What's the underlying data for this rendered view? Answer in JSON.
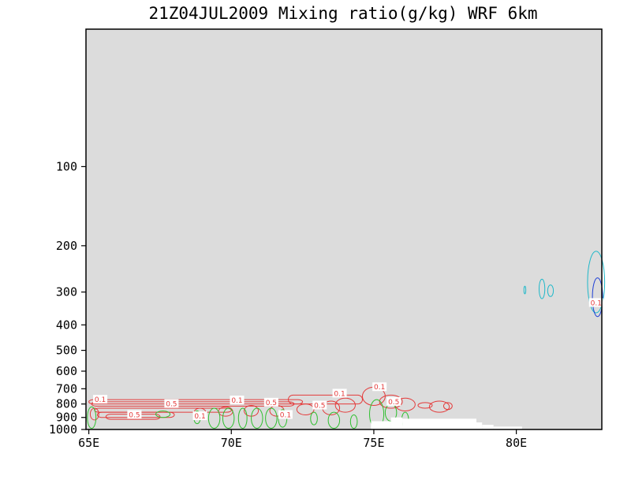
{
  "chart_data": {
    "type": "contour",
    "title": "21Z04JUL2009 Mixing ratio(g/kg)  WRF 6km",
    "xlabel": "",
    "ylabel": "",
    "x_ticks": [
      {
        "value": 65,
        "label": "65E"
      },
      {
        "value": 70,
        "label": "70E"
      },
      {
        "value": 75,
        "label": "75E"
      },
      {
        "value": 80,
        "label": "80E"
      }
    ],
    "y_ticks": [
      {
        "value": 100,
        "label": "100"
      },
      {
        "value": 200,
        "label": "200"
      },
      {
        "value": 300,
        "label": "300"
      },
      {
        "value": 400,
        "label": "400"
      },
      {
        "value": 500,
        "label": "500"
      },
      {
        "value": 600,
        "label": "600"
      },
      {
        "value": 700,
        "label": "700"
      },
      {
        "value": 800,
        "label": "800"
      },
      {
        "value": 900,
        "label": "900"
      },
      {
        "value": 1000,
        "label": "1000"
      }
    ],
    "xlim": [
      64.9,
      83.0
    ],
    "ylim": [
      1000,
      30
    ],
    "y_scale": "log",
    "background_color": "#dcdcdc",
    "terrain_color": "#ffffff",
    "contour_labels": [
      {
        "text": "0.1",
        "x": 65.4,
        "y": 770,
        "color": "#e43b3b"
      },
      {
        "text": "0.5",
        "x": 67.9,
        "y": 800,
        "color": "#e43b3b"
      },
      {
        "text": "0.5",
        "x": 66.6,
        "y": 880,
        "color": "#e43b3b"
      },
      {
        "text": "0.1",
        "x": 70.2,
        "y": 775,
        "color": "#e43b3b"
      },
      {
        "text": "0.5",
        "x": 71.4,
        "y": 790,
        "color": "#e43b3b"
      },
      {
        "text": "0.1",
        "x": 68.9,
        "y": 890,
        "color": "#e43b3b"
      },
      {
        "text": "0.1",
        "x": 71.9,
        "y": 880,
        "color": "#e43b3b"
      },
      {
        "text": "0.5",
        "x": 73.1,
        "y": 810,
        "color": "#e43b3b"
      },
      {
        "text": "0.1",
        "x": 73.8,
        "y": 730,
        "color": "#e43b3b"
      },
      {
        "text": "0.1",
        "x": 75.2,
        "y": 690,
        "color": "#e43b3b"
      },
      {
        "text": "0.5",
        "x": 75.7,
        "y": 785,
        "color": "#e43b3b"
      },
      {
        "text": "0.1",
        "x": 82.8,
        "y": 330,
        "color": "#1fb8c9"
      }
    ],
    "series": [
      {
        "color": "#e43b3b"
      },
      {
        "color": "#2fbf2f"
      },
      {
        "color": "#1fb8c9"
      },
      {
        "color": "#1e3fd6"
      }
    ]
  }
}
